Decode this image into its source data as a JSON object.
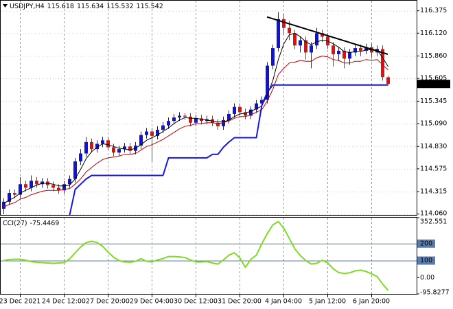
{
  "chart_data": [
    {
      "type": "candlestick",
      "title": "USDJPY,H4",
      "categories": [
        null,
        null,
        null,
        "23 Dec 2021",
        null,
        null,
        null,
        null,
        null,
        null,
        null,
        "24 Dec 12:00",
        null,
        null,
        null,
        null,
        null,
        null,
        null,
        "27 Dec 20:00",
        null,
        null,
        null,
        null,
        null,
        null,
        null,
        "29 Dec 04:00",
        null,
        null,
        null,
        null,
        null,
        null,
        null,
        "30 Dec 12:00",
        null,
        null,
        null,
        null,
        null,
        null,
        null,
        "31 Dec 20:00",
        null,
        null,
        null,
        null,
        null,
        null,
        null,
        "4 Jan 04:00",
        null,
        null,
        null,
        null,
        null,
        null,
        null,
        "5 Jan 12:00",
        null,
        null,
        null,
        null,
        null,
        null,
        null,
        "6 Jan 20:00",
        null,
        null,
        null
      ],
      "open": [
        114.12,
        114.2,
        114.3,
        114.28,
        114.4,
        114.36,
        114.44,
        114.4,
        114.43,
        114.39,
        114.36,
        114.33,
        114.4,
        114.46,
        114.66,
        114.75,
        114.88,
        114.8,
        114.86,
        114.9,
        114.82,
        114.76,
        114.8,
        114.83,
        114.78,
        114.84,
        114.96,
        115.0,
        114.95,
        115.02,
        115.07,
        115.12,
        115.16,
        115.18,
        115.17,
        115.1,
        115.15,
        115.12,
        115.14,
        115.1,
        115.06,
        115.13,
        115.2,
        115.28,
        115.22,
        115.18,
        115.25,
        115.32,
        115.36,
        115.75,
        115.95,
        116.28,
        116.18,
        116.12,
        115.98,
        116.04,
        115.9,
        115.98,
        116.12,
        116.08,
        115.98,
        115.88,
        115.92,
        115.83,
        115.9,
        115.95,
        115.92,
        115.96,
        115.9,
        115.94,
        115.618
      ],
      "high": [
        114.24,
        114.34,
        114.34,
        114.48,
        114.44,
        114.5,
        114.48,
        114.47,
        114.47,
        114.43,
        114.4,
        114.44,
        114.5,
        114.7,
        114.8,
        114.94,
        114.92,
        114.9,
        114.94,
        114.94,
        114.86,
        114.84,
        114.87,
        114.87,
        114.88,
        115.0,
        115.04,
        115.04,
        115.06,
        115.11,
        115.16,
        115.2,
        115.22,
        115.21,
        115.21,
        115.19,
        115.19,
        115.18,
        115.18,
        115.14,
        115.17,
        115.24,
        115.32,
        115.32,
        115.26,
        115.29,
        115.36,
        115.4,
        115.79,
        115.99,
        116.36,
        116.34,
        116.26,
        116.16,
        116.08,
        116.08,
        116.02,
        116.18,
        116.16,
        116.12,
        116.02,
        115.96,
        115.96,
        115.94,
        116.0,
        115.99,
        116.0,
        116.0,
        115.98,
        115.98,
        115.634
      ],
      "low": [
        114.06,
        114.16,
        114.24,
        114.24,
        114.32,
        114.32,
        114.36,
        114.36,
        114.35,
        114.32,
        114.29,
        114.29,
        114.36,
        114.42,
        114.62,
        114.71,
        114.76,
        114.76,
        114.82,
        114.78,
        114.72,
        114.72,
        114.76,
        114.74,
        114.74,
        114.8,
        114.92,
        114.66,
        114.91,
        114.98,
        115.03,
        115.08,
        115.12,
        115.13,
        115.06,
        115.06,
        115.08,
        115.08,
        115.06,
        115.02,
        115.02,
        115.09,
        115.16,
        115.18,
        115.14,
        115.14,
        115.21,
        115.28,
        115.32,
        115.71,
        115.91,
        116.1,
        116.04,
        115.94,
        115.9,
        115.82,
        115.72,
        115.94,
        116.02,
        115.94,
        115.74,
        115.8,
        115.72,
        115.76,
        115.86,
        115.86,
        115.88,
        115.84,
        115.86,
        115.58,
        115.532
      ],
      "close": [
        114.2,
        114.3,
        114.28,
        114.4,
        114.36,
        114.44,
        114.4,
        114.43,
        114.39,
        114.36,
        114.33,
        114.4,
        114.46,
        114.66,
        114.75,
        114.88,
        114.8,
        114.86,
        114.9,
        114.82,
        114.76,
        114.8,
        114.83,
        114.78,
        114.84,
        114.96,
        115.0,
        114.95,
        115.02,
        115.07,
        115.12,
        115.16,
        115.18,
        115.17,
        115.1,
        115.15,
        115.12,
        115.14,
        115.1,
        115.06,
        115.13,
        115.2,
        115.28,
        115.22,
        115.18,
        115.25,
        115.32,
        115.36,
        115.75,
        115.95,
        116.28,
        116.18,
        116.12,
        115.98,
        116.04,
        115.9,
        115.98,
        116.12,
        116.08,
        115.98,
        115.88,
        115.92,
        115.83,
        115.9,
        115.95,
        115.92,
        115.96,
        115.9,
        115.94,
        115.62,
        115.542
      ],
      "up_color": "#1212d6",
      "down_color": "#e01010",
      "series": [
        {
          "color": "#c00000",
          "width": 1,
          "values": [
            114.14,
            114.17,
            114.19,
            114.23,
            114.25,
            114.28,
            114.3,
            114.32,
            114.33,
            114.33,
            114.33,
            114.34,
            114.35,
            114.4,
            114.46,
            114.54,
            114.59,
            114.64,
            114.68,
            114.7,
            114.71,
            114.72,
            114.74,
            114.74,
            114.75,
            114.79,
            114.83,
            114.85,
            114.88,
            114.91,
            114.95,
            114.99,
            115.03,
            115.06,
            115.07,
            115.09,
            115.09,
            115.1,
            115.1,
            115.09,
            115.1,
            115.12,
            115.15,
            115.17,
            115.17,
            115.19,
            115.22,
            115.25,
            115.35,
            115.48,
            115.65,
            115.72,
            115.78,
            115.79,
            115.81,
            115.8,
            115.8,
            115.84,
            115.86,
            115.85,
            115.82,
            115.81,
            115.78,
            115.78,
            115.8,
            115.8,
            115.82,
            115.81,
            115.82,
            115.76,
            115.7
          ]
        },
        {
          "color": "#000000",
          "width": 1,
          "values": [
            114.18,
            114.22,
            114.25,
            114.3,
            114.33,
            114.36,
            114.39,
            114.41,
            114.41,
            114.4,
            114.38,
            114.38,
            114.39,
            114.46,
            114.57,
            114.69,
            114.77,
            114.82,
            114.86,
            114.85,
            114.83,
            114.81,
            114.8,
            114.79,
            114.81,
            114.85,
            114.9,
            114.93,
            114.96,
            115.0,
            115.04,
            115.09,
            115.13,
            115.16,
            115.15,
            115.15,
            115.14,
            115.13,
            115.12,
            115.11,
            115.11,
            115.13,
            115.17,
            115.2,
            115.21,
            115.23,
            115.26,
            115.29,
            115.42,
            115.58,
            115.82,
            116.0,
            116.1,
            116.12,
            116.08,
            116.02,
            115.99,
            116.02,
            116.04,
            116.03,
            116.0,
            115.96,
            115.91,
            115.9,
            115.91,
            115.91,
            115.93,
            115.93,
            115.93,
            115.84,
            115.74
          ]
        },
        {
          "color": "#1515e0",
          "width": 2,
          "values": [
            null,
            null,
            null,
            null,
            null,
            null,
            null,
            null,
            null,
            null,
            null,
            null,
            114.05,
            114.34,
            114.4,
            114.46,
            114.5,
            114.5,
            114.5,
            114.5,
            114.5,
            114.5,
            114.5,
            114.5,
            114.5,
            114.5,
            114.5,
            114.5,
            114.5,
            114.5,
            114.7,
            114.7,
            114.7,
            114.7,
            114.7,
            114.7,
            114.7,
            114.7,
            114.74,
            114.74,
            114.82,
            114.88,
            114.93,
            114.93,
            114.93,
            114.93,
            114.93,
            115.3,
            115.45,
            115.53,
            115.53,
            115.53,
            115.53,
            115.53,
            115.53,
            115.53,
            115.53,
            115.53,
            115.53,
            115.53,
            115.53,
            115.53,
            115.53,
            115.53,
            115.53,
            115.53,
            115.53,
            115.53,
            115.53,
            115.53,
            115.53
          ]
        },
        {
          "color": "#000000",
          "width": 2,
          "x": [
            48,
            70
          ],
          "values": [
            116.305,
            115.88
          ]
        }
      ],
      "ylim": [
        114.05,
        116.49
      ],
      "yticks": [
        116.375,
        {
          "value": 116.12,
          "label": "116.120"
        },
        {
          "value": 115.86,
          "label": "115.860"
        },
        115.605,
        115.345,
        {
          "value": 115.09,
          "label": "115.090"
        },
        {
          "value": 114.83,
          "label": "114.830"
        },
        114.575,
        114.315,
        {
          "value": 114.06,
          "label": "114.060"
        }
      ],
      "grid": true
    },
    {
      "type": "line",
      "title": "CCI(27)",
      "color": "#7ddc1f",
      "values": [
        100,
        106,
        108,
        108,
        102,
        94,
        90,
        88,
        86,
        84,
        86,
        88,
        110,
        146,
        180,
        206,
        214,
        206,
        184,
        150,
        120,
        100,
        92,
        90,
        96,
        112,
        96,
        92,
        104,
        112,
        124,
        124,
        122,
        118,
        104,
        92,
        92,
        94,
        86,
        80,
        104,
        132,
        146,
        116,
        60,
        108,
        132,
        200,
        260,
        310,
        330,
        290,
        230,
        170,
        130,
        100,
        80,
        84,
        102,
        86,
        52,
        30,
        24,
        28,
        40,
        44,
        36,
        22,
        6,
        -38,
        -75.4469
      ],
      "ylim": [
        -95.8277,
        352.551
      ],
      "yticks": [
        352.551,
        200,
        100,
        {
          "value": 0,
          "label": "0.00"
        },
        -95.8277
      ],
      "levels": [
        200,
        100
      ],
      "level_color": "#5a7ca8"
    }
  ]
}
